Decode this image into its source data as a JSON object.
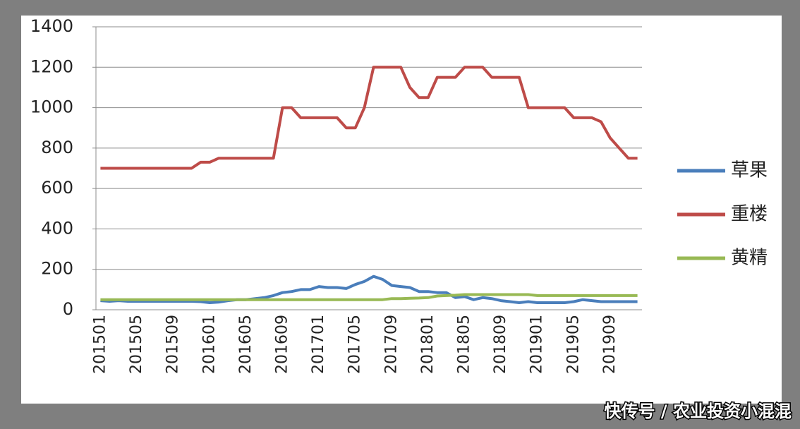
{
  "chart_data": {
    "type": "line",
    "categories": [
      "201501",
      null,
      null,
      null,
      "201505",
      null,
      null,
      null,
      "201509",
      null,
      null,
      null,
      "201601",
      null,
      null,
      null,
      "201605",
      null,
      null,
      null,
      "201609",
      null,
      null,
      null,
      "201701",
      null,
      null,
      null,
      "201705",
      null,
      null,
      null,
      "201709",
      null,
      null,
      null,
      "201801",
      null,
      null,
      null,
      "201805",
      null,
      null,
      null,
      "201809",
      null,
      null,
      null,
      "201901",
      null,
      null,
      null,
      "201905",
      null,
      null,
      null,
      "201909",
      null,
      null,
      null
    ],
    "series": [
      {
        "name": "草果",
        "color": "#4a7ebb",
        "values": [
          45,
          42,
          45,
          42,
          42,
          42,
          42,
          42,
          42,
          42,
          42,
          40,
          35,
          38,
          45,
          50,
          50,
          55,
          60,
          70,
          85,
          90,
          100,
          100,
          115,
          110,
          110,
          105,
          125,
          140,
          165,
          150,
          120,
          115,
          110,
          90,
          90,
          85,
          85,
          60,
          65,
          50,
          60,
          55,
          45,
          40,
          35,
          40,
          35,
          35,
          35,
          35,
          40,
          50,
          45,
          40,
          40,
          40,
          40,
          40
        ]
      },
      {
        "name": "重楼",
        "color": "#be4b48",
        "values": [
          700,
          700,
          700,
          700,
          700,
          700,
          700,
          700,
          700,
          700,
          700,
          730,
          730,
          750,
          750,
          750,
          750,
          750,
          750,
          750,
          1000,
          1000,
          950,
          950,
          950,
          950,
          950,
          900,
          900,
          1000,
          1200,
          1200,
          1200,
          1200,
          1100,
          1050,
          1050,
          1150,
          1150,
          1150,
          1200,
          1200,
          1200,
          1150,
          1150,
          1150,
          1150,
          1000,
          1000,
          1000,
          1000,
          1000,
          950,
          950,
          950,
          930,
          850,
          800,
          750,
          750
        ]
      },
      {
        "name": "黄精",
        "color": "#98b954",
        "values": [
          50,
          50,
          50,
          50,
          50,
          50,
          50,
          50,
          50,
          50,
          50,
          50,
          50,
          50,
          50,
          50,
          50,
          50,
          50,
          50,
          50,
          50,
          50,
          50,
          50,
          50,
          50,
          50,
          50,
          50,
          50,
          50,
          55,
          55,
          57,
          58,
          60,
          68,
          70,
          72,
          75,
          75,
          75,
          75,
          75,
          75,
          75,
          75,
          70,
          70,
          70,
          70,
          70,
          70,
          70,
          70,
          70,
          70,
          70,
          70
        ]
      }
    ],
    "ylim": [
      0,
      1400
    ],
    "yticks": [
      0,
      200,
      400,
      600,
      800,
      1000,
      1200,
      1400
    ],
    "grid": true,
    "legend": "right",
    "watermark": "快传号 / 农业投资小混混"
  }
}
